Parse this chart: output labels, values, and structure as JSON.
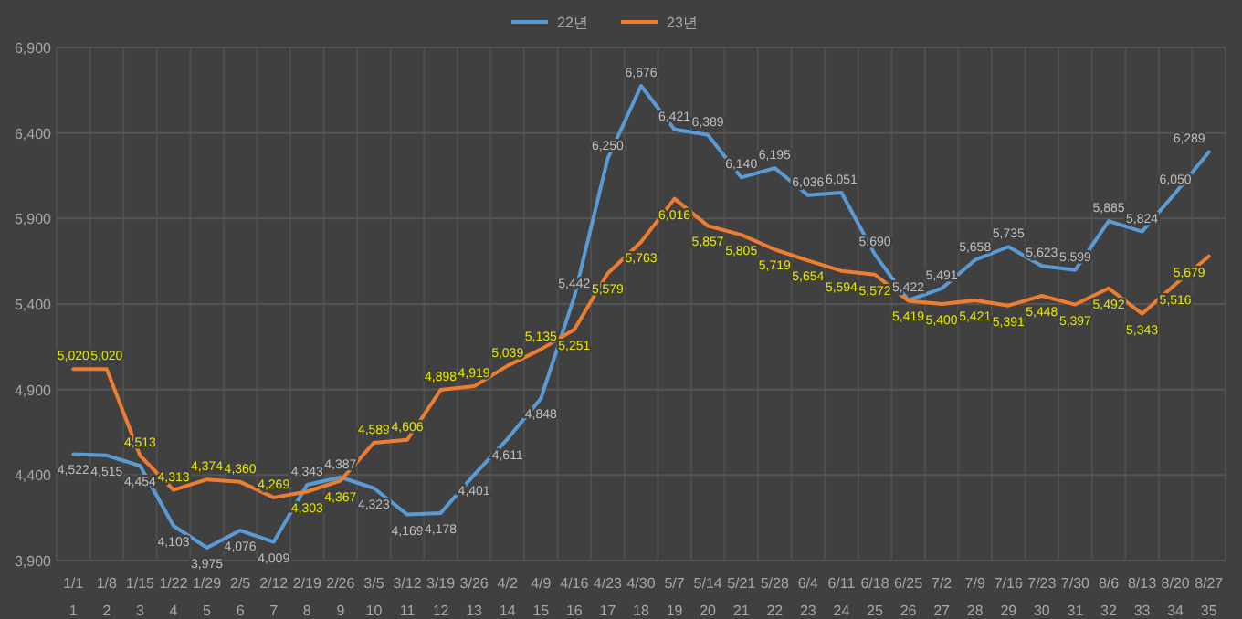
{
  "chart_data": {
    "type": "line",
    "categories": [
      "1/1\n1",
      "1/8\n2",
      "1/15\n3",
      "1/22\n4",
      "1/29\n5",
      "2/5\n6",
      "2/12\n7",
      "2/19\n8",
      "2/26\n9",
      "3/5\n10",
      "3/12\n11",
      "3/19\n12",
      "3/26\n13",
      "4/2\n14",
      "4/9\n15",
      "4/16\n16",
      "4/23\n17",
      "4/30\n18",
      "5/7\n19",
      "5/14\n20",
      "5/21\n21",
      "5/28\n22",
      "6/4\n23",
      "6/11\n24",
      "6/18\n25",
      "6/25\n26",
      "7/2\n27",
      "7/9\n28",
      "7/16\n29",
      "7/23\n30",
      "7/30\n31",
      "8/6\n32",
      "8/13\n33",
      "8/20\n34",
      "8/27\n35"
    ],
    "series": [
      {
        "name": "22년",
        "color": "#5b9bd5",
        "values": [
          4522,
          4515,
          4454,
          4103,
          3975,
          4076,
          4009,
          4343,
          4387,
          4323,
          4169,
          4178,
          4401,
          4611,
          4848,
          5442,
          6250,
          6676,
          6421,
          6389,
          6140,
          6195,
          6036,
          6051,
          5690,
          5422,
          5491,
          5658,
          5735,
          5623,
          5599,
          5885,
          5824,
          6050,
          6289
        ],
        "value_labels": [
          "4,522",
          "4,515",
          "4,454",
          "4,103",
          "3,975",
          "4,076",
          "4,009",
          "4,343",
          "4,387",
          "4,323",
          "4,169",
          "4,178",
          "4,401",
          "4,611",
          "4,848",
          "5,442",
          "6,250",
          "6,676",
          "6,421",
          "6,389",
          "6,140",
          "6,195",
          "6,036",
          "6,051",
          "5,690",
          "5,422",
          "5,491",
          "5,658",
          "5,735",
          "5,623",
          "5,599",
          "5,885",
          "5,824",
          "6,050",
          "6,289"
        ]
      },
      {
        "name": "23년",
        "color": "#ed7d31",
        "values": [
          5020,
          5020,
          4513,
          4313,
          4374,
          4360,
          4269,
          4303,
          4367,
          4589,
          4606,
          4898,
          4919,
          5039,
          5135,
          5251,
          5579,
          5763,
          6016,
          5857,
          5805,
          5719,
          5654,
          5594,
          5572,
          5419,
          5400,
          5421,
          5391,
          5448,
          5397,
          5492,
          5343,
          5516,
          5679
        ],
        "value_labels": [
          "5,020",
          "5,020",
          "4,513",
          "4,313",
          "4,374",
          "4,360",
          "4,269",
          "4,303",
          "4,367",
          "4,589",
          "4,606",
          "4,898",
          "4,919",
          "5,039",
          "5,135",
          "5,251",
          "5,579",
          "5,763",
          "6,016",
          "5,857",
          "5,805",
          "5,719",
          "5,654",
          "5,594",
          "5,572",
          "5,419",
          "5,400",
          "5,421",
          "5,391",
          "5,448",
          "5,397",
          "5,492",
          "5,343",
          "5,516",
          "5,679"
        ]
      }
    ],
    "ylim": [
      3900,
      6900
    ],
    "yticks": [
      {
        "value": 3900,
        "label": "3,900"
      },
      {
        "value": 4400,
        "label": "4,400"
      },
      {
        "value": 4900,
        "label": "4,900"
      },
      {
        "value": 5400,
        "label": "5,400"
      },
      {
        "value": 5900,
        "label": "5,900"
      },
      {
        "value": 6400,
        "label": "6,400"
      },
      {
        "value": 6900,
        "label": "6,900"
      }
    ],
    "grid": true,
    "legend": "top",
    "marker": "none",
    "line_style": "solid"
  }
}
